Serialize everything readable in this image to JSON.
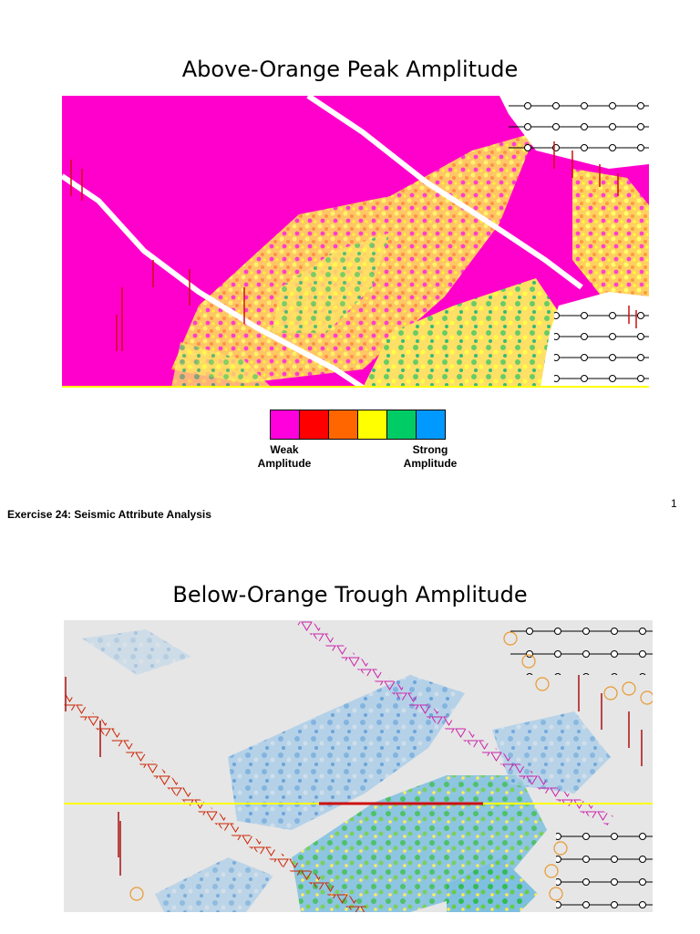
{
  "slide1": {
    "title": "Above-Orange Peak Amplitude",
    "legend": {
      "colors": [
        "#ff00dd",
        "#ff0000",
        "#ff6600",
        "#ffff00",
        "#00cc66",
        "#0099ff"
      ],
      "weak_label": "Weak\nAmplitude",
      "strong_label": "Strong\nAmplitude"
    }
  },
  "footer": {
    "text": "Exercise 24: Seismic Attribute Analysis",
    "page_number": "1"
  },
  "slide2": {
    "title": "Below-Orange Trough Amplitude"
  }
}
